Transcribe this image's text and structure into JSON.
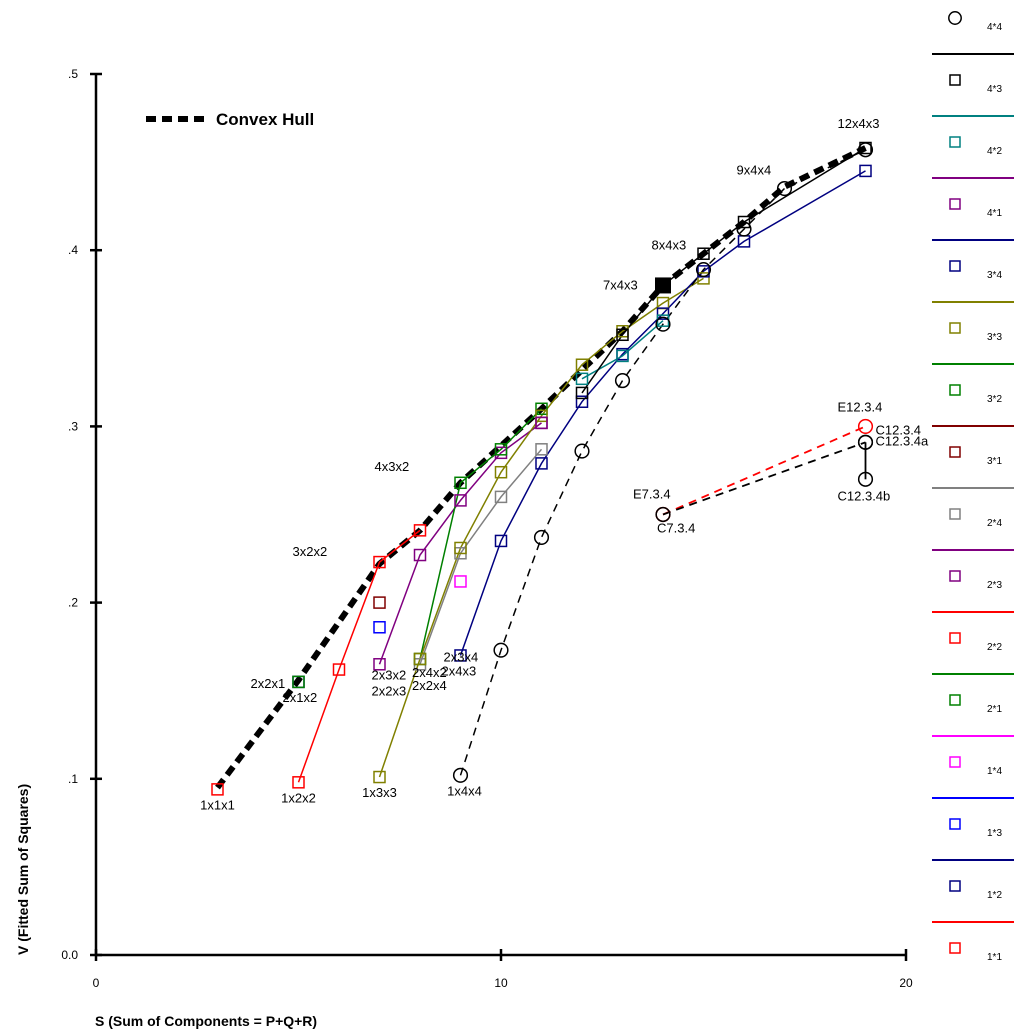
{
  "chart_data": {
    "type": "line",
    "title": "",
    "xlabel": "S (Sum of Components = P+Q+R)",
    "ylabel": "V (Fitted Sum of Squares)",
    "xlim": [
      0,
      20
    ],
    "ylim": [
      0,
      0.5
    ],
    "x_ticks": [
      {
        "v": 0,
        "label": "0"
      },
      {
        "v": 10,
        "label": "10"
      },
      {
        "v": 20,
        "label": "20"
      }
    ],
    "y_ticks": [
      {
        "v": 0,
        "label": "0.0"
      },
      {
        "v": 0.1,
        "label": ".1"
      },
      {
        "v": 0.2,
        "label": ".2"
      },
      {
        "v": 0.3,
        "label": ".3"
      },
      {
        "v": 0.4,
        "label": ".4"
      },
      {
        "v": 0.5,
        "label": ".5"
      }
    ],
    "grid": false,
    "legend_placement": "right",
    "hull_label": "Convex Hull",
    "hull": [
      [
        3,
        0.095
      ],
      [
        5,
        0.156
      ],
      [
        7,
        0.222
      ],
      [
        8,
        0.241
      ],
      [
        9,
        0.268
      ],
      [
        10,
        0.289
      ],
      [
        11,
        0.31
      ],
      [
        12,
        0.332
      ],
      [
        13,
        0.354
      ],
      [
        14,
        0.38
      ],
      [
        15,
        0.398
      ],
      [
        16,
        0.416
      ],
      [
        17,
        0.436
      ],
      [
        19,
        0.458
      ]
    ],
    "series": [
      {
        "name": "4*4",
        "color": "#000000",
        "marker": "circle",
        "dashed": true,
        "points": [
          [
            9,
            0.102
          ],
          [
            10,
            0.173
          ],
          [
            11,
            0.237
          ],
          [
            12,
            0.286
          ],
          [
            13,
            0.326
          ],
          [
            14,
            0.358
          ],
          [
            15,
            0.389
          ],
          [
            16,
            0.412
          ],
          [
            17,
            0.435
          ],
          [
            19,
            0.457
          ]
        ]
      },
      {
        "name": "4*3",
        "color": "#000000",
        "marker": "square",
        "dashed": false,
        "points": [
          [
            12,
            0.319
          ],
          [
            13,
            0.352
          ],
          [
            14,
            0.38
          ],
          [
            15,
            0.398
          ],
          [
            16,
            0.416
          ],
          [
            19,
            0.458
          ]
        ]
      },
      {
        "name": "4*2",
        "color": "#008080",
        "marker": "square",
        "dashed": false,
        "points": [
          [
            12,
            0.327
          ],
          [
            13,
            0.34
          ],
          [
            14,
            0.36
          ]
        ]
      },
      {
        "name": "4*1",
        "color": "#800080",
        "marker": "square",
        "dashed": false,
        "points": [
          [
            11,
            0.302
          ]
        ]
      },
      {
        "name": "3*4",
        "color": "#000080",
        "marker": "square",
        "dashed": false,
        "points": [
          [
            9,
            0.17
          ],
          [
            10,
            0.235
          ],
          [
            11,
            0.279
          ],
          [
            12,
            0.314
          ],
          [
            13,
            0.341
          ],
          [
            14,
            0.364
          ],
          [
            15,
            0.388
          ],
          [
            16,
            0.405
          ],
          [
            19,
            0.445
          ]
        ]
      },
      {
        "name": "3*3",
        "color": "#808000",
        "marker": "square",
        "dashed": false,
        "points": [
          [
            7,
            0.101
          ],
          [
            8,
            0.168
          ],
          [
            9,
            0.231
          ],
          [
            10,
            0.274
          ],
          [
            11,
            0.306
          ],
          [
            12,
            0.335
          ],
          [
            13,
            0.354
          ],
          [
            14,
            0.37
          ],
          [
            15,
            0.384
          ]
        ]
      },
      {
        "name": "3*2",
        "color": "#008000",
        "marker": "square",
        "dashed": false,
        "points": [
          [
            8,
            0.168
          ],
          [
            9,
            0.268
          ],
          [
            10,
            0.287
          ],
          [
            11,
            0.31
          ]
        ]
      },
      {
        "name": "3*1",
        "color": "#800000",
        "marker": "square",
        "dashed": false,
        "points": [
          [
            7,
            0.2
          ]
        ]
      },
      {
        "name": "2*4",
        "color": "#808080",
        "marker": "square",
        "dashed": false,
        "points": [
          [
            8,
            0.165
          ],
          [
            9,
            0.228
          ],
          [
            10,
            0.26
          ],
          [
            11,
            0.287
          ]
        ]
      },
      {
        "name": "2*3",
        "color": "#800080",
        "marker": "square",
        "dashed": false,
        "points": [
          [
            7,
            0.165
          ],
          [
            8,
            0.227
          ],
          [
            9,
            0.258
          ],
          [
            10,
            0.285
          ],
          [
            11,
            0.302
          ]
        ]
      },
      {
        "name": "2*2",
        "color": "#ff0000",
        "marker": "square",
        "dashed": false,
        "points": [
          [
            5,
            0.098
          ],
          [
            6,
            0.162
          ],
          [
            7,
            0.223
          ],
          [
            8,
            0.241
          ]
        ]
      },
      {
        "name": "2*1",
        "color": "#008000",
        "marker": "square",
        "dashed": false,
        "points": [
          [
            5,
            0.155
          ]
        ]
      },
      {
        "name": "1*4",
        "color": "#ff00ff",
        "marker": "square",
        "dashed": false,
        "points": [
          [
            9,
            0.212
          ]
        ]
      },
      {
        "name": "1*3",
        "color": "#0000ff",
        "marker": "square",
        "dashed": false,
        "points": [
          [
            7,
            0.186
          ]
        ]
      },
      {
        "name": "1*2",
        "color": "#000080",
        "marker": "square",
        "dashed": false,
        "points": [
          [
            5,
            0.155
          ]
        ]
      },
      {
        "name": "1*1",
        "color": "#ff0000",
        "marker": "square",
        "dashed": false,
        "points": [
          [
            3,
            0.094
          ]
        ]
      }
    ],
    "extra_segments": [
      {
        "color": "#ff0000",
        "dashed": true,
        "marker": "circle",
        "points": [
          [
            14,
            0.25
          ],
          [
            19,
            0.3
          ]
        ]
      },
      {
        "color": "#000000",
        "dashed": true,
        "marker": "circle",
        "points": [
          [
            14,
            0.25
          ],
          [
            19,
            0.291
          ]
        ]
      },
      {
        "color": "#000000",
        "dashed": false,
        "marker": "circle",
        "points": [
          [
            19,
            0.291
          ],
          [
            19,
            0.27
          ]
        ]
      }
    ],
    "filled_marker": [
      14,
      0.38
    ],
    "annotations": [
      {
        "text": "1x1x1",
        "x": 3,
        "y": 0.094
      },
      {
        "text": "1x2x2",
        "x": 5,
        "y": 0.098
      },
      {
        "text": "1x3x3",
        "x": 7,
        "y": 0.101
      },
      {
        "text": "1x4x4",
        "x": 9,
        "y": 0.102
      },
      {
        "text": "2x1x2",
        "x": 5,
        "y": 0.155
      },
      {
        "text": "2x2x1",
        "x": 5,
        "y": 0.155
      },
      {
        "text": "2x3x2",
        "x": 7,
        "y": 0.165
      },
      {
        "text": "2x2x3",
        "x": 7,
        "y": 0.165
      },
      {
        "text": "2x4x2",
        "x": 8,
        "y": 0.168
      },
      {
        "text": "2x2x4",
        "x": 8,
        "y": 0.168
      },
      {
        "text": "2x3x4",
        "x": 9,
        "y": 0.17
      },
      {
        "text": "2x4x3",
        "x": 9,
        "y": 0.17
      },
      {
        "text": "3x2x2",
        "x": 7,
        "y": 0.223
      },
      {
        "text": "4x3x2",
        "x": 9,
        "y": 0.268
      },
      {
        "text": "7x4x3",
        "x": 14,
        "y": 0.38
      },
      {
        "text": "8x4x3",
        "x": 15,
        "y": 0.398
      },
      {
        "text": "9x4x4",
        "x": 17,
        "y": 0.435
      },
      {
        "text": "12x4x3",
        "x": 19,
        "y": 0.458
      },
      {
        "text": "E7.3.4",
        "x": 14,
        "y": 0.25
      },
      {
        "text": "C7.3.4",
        "x": 14,
        "y": 0.25
      },
      {
        "text": "E12.3.4",
        "x": 19,
        "y": 0.3
      },
      {
        "text": "C12.3.4",
        "x": 19,
        "y": 0.3
      },
      {
        "text": "C12.3.4a",
        "x": 19,
        "y": 0.291
      },
      {
        "text": "C12.3.4b",
        "x": 19,
        "y": 0.27
      }
    ]
  }
}
